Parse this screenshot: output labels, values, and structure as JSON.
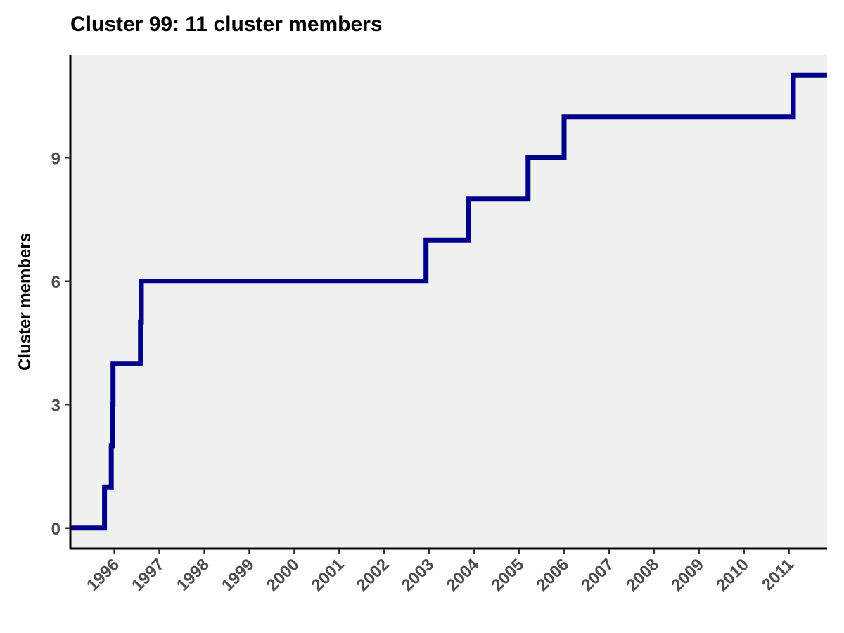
{
  "chart_data": {
    "type": "line",
    "step": true,
    "title": "Cluster 99: 11 cluster members",
    "xlabel": "",
    "ylabel": "Cluster members",
    "x_ticks": [
      "1996",
      "1997",
      "1998",
      "1999",
      "2000",
      "2001",
      "2002",
      "2003",
      "2004",
      "2005",
      "2006",
      "2007",
      "2008",
      "2009",
      "2010",
      "2011"
    ],
    "y_ticks": [
      0,
      3,
      6,
      9
    ],
    "xlim": [
      1995.02,
      2011.85
    ],
    "ylim": [
      -0.5,
      11.5
    ],
    "grid": false,
    "series": [
      {
        "color": "#00008b",
        "x": [
          1995.02,
          1995.78,
          1995.78,
          1995.93,
          1995.93,
          1995.95,
          1995.95,
          1995.97,
          1995.97,
          1996.58,
          1996.58,
          1996.6,
          1996.6,
          2002.93,
          2002.93,
          2003.87,
          2003.87,
          2005.2,
          2005.2,
          2006.0,
          2006.0,
          2011.1,
          2011.1,
          2011.85
        ],
        "y": [
          0,
          0,
          1,
          1,
          2,
          2,
          3,
          3,
          4,
          4,
          5,
          5,
          6,
          6,
          7,
          7,
          8,
          8,
          9,
          9,
          10,
          10,
          11,
          11
        ]
      }
    ],
    "colors": {
      "panel": "#f0f0f0",
      "axis": "#000000",
      "line": "#00008b"
    }
  }
}
